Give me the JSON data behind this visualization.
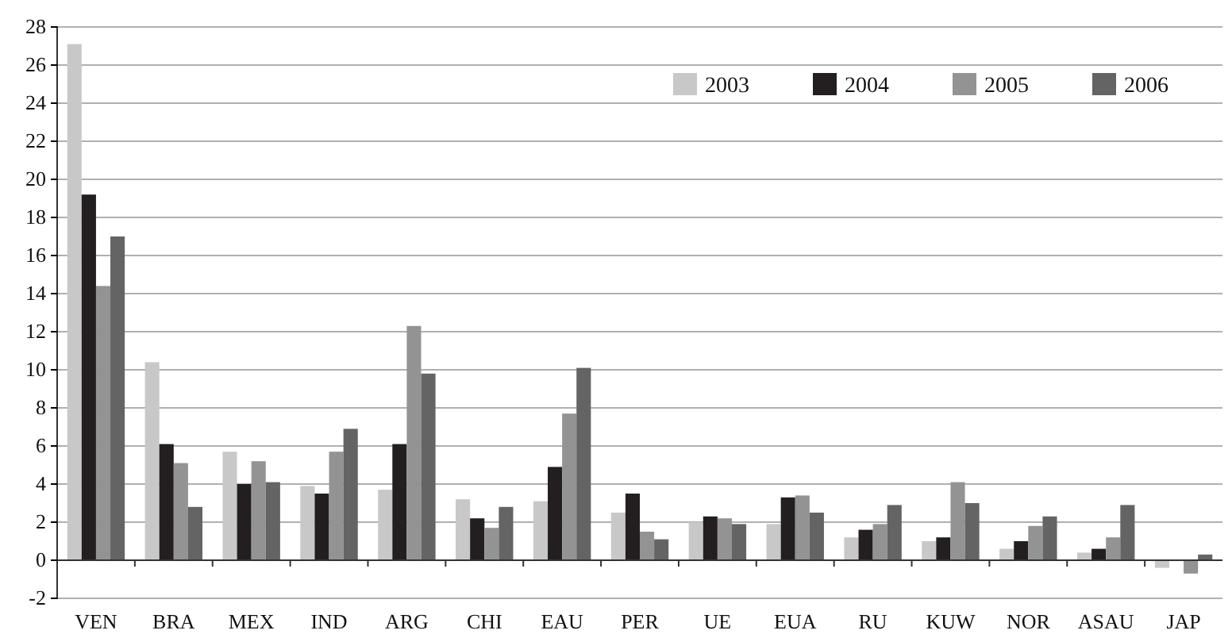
{
  "chart_data": {
    "type": "bar",
    "categories": [
      "VEN",
      "BRA",
      "MEX",
      "IND",
      "ARG",
      "CHI",
      "EAU",
      "PER",
      "UE",
      "EUA",
      "RU",
      "KUW",
      "NOR",
      "ASAU",
      "JAP"
    ],
    "series": [
      {
        "name": "2003",
        "color": "#c8c8c8",
        "values": [
          27.1,
          10.4,
          5.7,
          3.9,
          3.7,
          3.2,
          3.1,
          2.5,
          2.0,
          1.9,
          1.2,
          1.0,
          0.6,
          0.4,
          -0.4
        ]
      },
      {
        "name": "2004",
        "color": "#231f20",
        "values": [
          19.2,
          6.1,
          4.0,
          3.5,
          6.1,
          2.2,
          4.9,
          3.5,
          2.3,
          3.3,
          1.6,
          1.2,
          1.0,
          0.6,
          0
        ]
      },
      {
        "name": "2005",
        "color": "#939393",
        "values": [
          14.4,
          5.1,
          5.2,
          5.7,
          12.3,
          1.7,
          7.7,
          1.5,
          2.2,
          3.4,
          1.9,
          4.1,
          1.8,
          1.2,
          -0.7
        ]
      },
      {
        "name": "2006",
        "color": "#646464",
        "values": [
          17.0,
          2.8,
          4.1,
          6.9,
          9.8,
          2.8,
          10.1,
          1.1,
          1.9,
          2.5,
          2.9,
          3.0,
          2.3,
          2.9,
          0.3
        ]
      }
    ],
    "ylim": [
      -2,
      28
    ],
    "yticks": [
      -2,
      0,
      2,
      4,
      6,
      8,
      10,
      12,
      14,
      16,
      18,
      20,
      22,
      24,
      26,
      28
    ],
    "grid": "y",
    "legend": "top right"
  }
}
